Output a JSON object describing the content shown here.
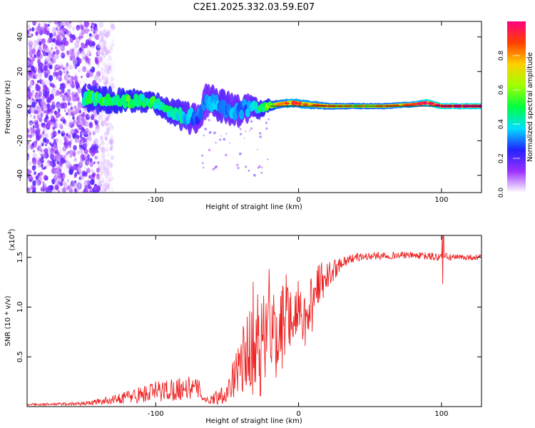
{
  "chart_data": [
    {
      "type": "heatmap",
      "title": "C2E1.2025.332.03.59.E07",
      "xlabel": "Height of straight line (km)",
      "ylabel": "Frequency (Hz)",
      "xlim": [
        -190,
        128
      ],
      "ylim": [
        -50,
        49
      ],
      "xticks": [
        {
          "value": -100,
          "label": "-100"
        },
        {
          "value": 0,
          "label": "0"
        },
        {
          "value": 100,
          "label": "100"
        }
      ],
      "yticks": [
        {
          "value": -40,
          "label": "-40"
        },
        {
          "value": -20,
          "label": "-20"
        },
        {
          "value": 0,
          "label": "0"
        },
        {
          "value": 20,
          "label": "20"
        },
        {
          "value": 40,
          "label": "40"
        }
      ],
      "ridge": {
        "x": [
          -150,
          -140,
          -120,
          -110,
          -100,
          -90,
          -85,
          -80,
          -75,
          -70,
          -65,
          -55,
          -45,
          -35,
          -25,
          -15,
          -5,
          5,
          20,
          40,
          60,
          80,
          90,
          100,
          128
        ],
        "y": [
          4,
          4,
          3,
          3,
          2,
          -3,
          -4,
          -6,
          -7,
          -6,
          3,
          1,
          -3,
          -1,
          -1,
          1,
          2,
          1,
          0,
          0,
          0,
          1,
          2,
          0,
          0
        ],
        "amp": [
          0.5,
          0.5,
          0.55,
          0.5,
          0.5,
          0.45,
          0.45,
          0.4,
          0.35,
          0.3,
          0.3,
          0.4,
          0.35,
          0.35,
          0.5,
          0.7,
          0.85,
          0.8,
          0.75,
          0.7,
          0.72,
          0.8,
          0.95,
          0.98,
          0.98
        ],
        "width": [
          5,
          5,
          4,
          4,
          4,
          4,
          5,
          6,
          6,
          5,
          6,
          6,
          6,
          5,
          3,
          2,
          2,
          2,
          1.5,
          1.2,
          1.2,
          1.2,
          1.5,
          1.2,
          1.2
        ]
      },
      "noise_region": {
        "x_from": -190,
        "x_to": -140,
        "amplitude_max": 0.2
      },
      "colorbar": {
        "label": "Normalized spectral amplitude",
        "range": [
          0,
          1
        ],
        "ticks": [
          {
            "value": 0.0,
            "label": "0.0"
          },
          {
            "value": 0.2,
            "label": "0.2"
          },
          {
            "value": 0.4,
            "label": "0.4"
          },
          {
            "value": 0.6,
            "label": "0.6"
          },
          {
            "value": 0.8,
            "label": "0.8"
          }
        ],
        "colors": [
          "#ffffff",
          "#9b30ff",
          "#2222ff",
          "#00e0ff",
          "#00ff40",
          "#a0ff00",
          "#ffd000",
          "#ff4000",
          "#ff0080"
        ]
      }
    },
    {
      "type": "line",
      "xlabel": "Height of straight line (km)",
      "ylabel": "SNR (10 * v/v)",
      "scale_note": "(x10",
      "scale_exp": "4",
      "xlim": [
        -190,
        128
      ],
      "ylim": [
        0,
        1.72
      ],
      "xticks": [
        {
          "value": -100,
          "label": "-100"
        },
        {
          "value": 0,
          "label": "0"
        },
        {
          "value": 100,
          "label": "100"
        }
      ],
      "yticks": [
        {
          "value": 0.5,
          "label": "0.5"
        },
        {
          "value": 1.0,
          "label": "1.0"
        },
        {
          "value": 1.5,
          "label": "1.5"
        }
      ],
      "color": "#ee2222",
      "envelope": {
        "x": [
          -190,
          -150,
          -130,
          -120,
          -110,
          -100,
          -90,
          -80,
          -70,
          -65,
          -60,
          -50,
          -45,
          -40,
          -35,
          -30,
          -25,
          -20,
          -15,
          -10,
          -5,
          0,
          5,
          10,
          15,
          20,
          30,
          40,
          60,
          80,
          100,
          110,
          128
        ],
        "mean": [
          0.02,
          0.03,
          0.07,
          0.1,
          0.12,
          0.15,
          0.17,
          0.19,
          0.18,
          0.06,
          0.08,
          0.15,
          0.3,
          0.45,
          0.55,
          0.6,
          0.6,
          0.85,
          0.65,
          0.85,
          0.95,
          1.0,
          0.85,
          1.05,
          1.2,
          1.3,
          1.45,
          1.5,
          1.52,
          1.52,
          1.5,
          1.5,
          1.5
        ],
        "spread": [
          0.01,
          0.02,
          0.04,
          0.07,
          0.09,
          0.11,
          0.12,
          0.12,
          0.1,
          0.03,
          0.06,
          0.12,
          0.2,
          0.3,
          0.45,
          0.5,
          0.5,
          0.45,
          0.45,
          0.4,
          0.35,
          0.3,
          0.3,
          0.3,
          0.25,
          0.15,
          0.06,
          0.04,
          0.04,
          0.03,
          0.05,
          0.03,
          0.03
        ]
      },
      "spike": {
        "x": 101,
        "y_low": 1.23,
        "y_high": 1.72
      }
    }
  ]
}
